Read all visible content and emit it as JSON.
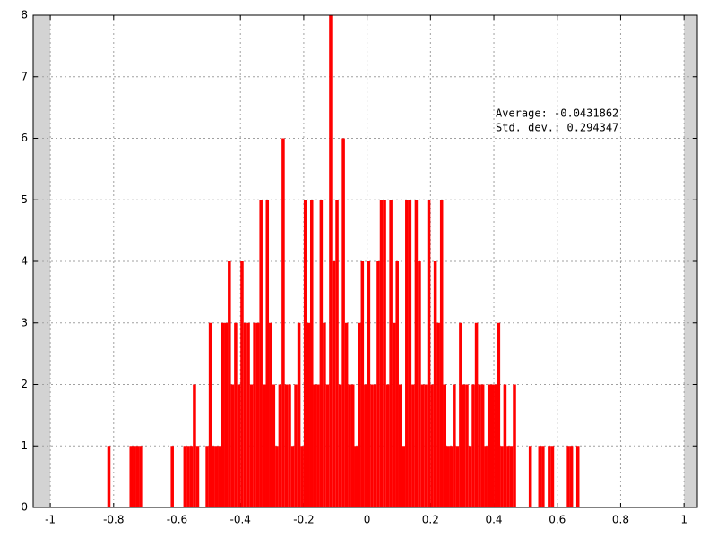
{
  "chart_data": {
    "type": "histogram",
    "annotations": [
      "Average: -0.0431862",
      "Std. dev.: 0.294347"
    ],
    "bins": [
      -0.82,
      -0.81,
      -0.8,
      -0.79,
      -0.78,
      -0.77,
      -0.76,
      -0.75,
      -0.74,
      -0.73,
      -0.72,
      -0.71,
      -0.7,
      -0.69,
      -0.68,
      -0.67,
      -0.66,
      -0.65,
      -0.64,
      -0.63,
      -0.62,
      -0.61,
      -0.6,
      -0.59,
      -0.58,
      -0.57,
      -0.56,
      -0.55,
      -0.54,
      -0.53,
      -0.52,
      -0.51,
      -0.5,
      -0.49,
      -0.48,
      -0.47,
      -0.46,
      -0.45,
      -0.44,
      -0.43,
      -0.42,
      -0.41,
      -0.4,
      -0.39,
      -0.38,
      -0.37,
      -0.36,
      -0.35,
      -0.34,
      -0.33,
      -0.32,
      -0.31,
      -0.3,
      -0.29,
      -0.28,
      -0.27,
      -0.26,
      -0.25,
      -0.24,
      -0.23,
      -0.22,
      -0.21,
      -0.2,
      -0.19,
      -0.18,
      -0.17,
      -0.16,
      -0.15,
      -0.14,
      -0.13,
      -0.12,
      -0.11,
      -0.1,
      -0.09,
      -0.08,
      -0.07,
      -0.06,
      -0.05,
      -0.04,
      -0.03,
      -0.02,
      -0.01,
      0,
      0.01,
      0.02,
      0.03,
      0.04,
      0.05,
      0.06,
      0.07,
      0.08,
      0.09,
      0.1,
      0.11,
      0.12,
      0.13,
      0.14,
      0.15,
      0.16,
      0.17,
      0.18,
      0.19,
      0.2,
      0.21,
      0.22,
      0.23,
      0.24,
      0.25,
      0.26,
      0.27,
      0.28,
      0.29,
      0.3,
      0.31,
      0.32,
      0.33,
      0.34,
      0.35,
      0.36,
      0.37,
      0.38,
      0.39,
      0.4,
      0.41,
      0.42,
      0.43,
      0.44,
      0.45,
      0.46,
      0.47,
      0.48,
      0.49,
      0.5,
      0.51,
      0.52,
      0.53,
      0.54,
      0.55,
      0.56,
      0.57,
      0.58,
      0.59,
      0.6,
      0.61,
      0.62,
      0.63,
      0.64,
      0.65,
      0.66,
      0.67
    ],
    "values": [
      1,
      0,
      0,
      0,
      0,
      0,
      0,
      1,
      1,
      1,
      1,
      0,
      0,
      0,
      0,
      0,
      0,
      0,
      0,
      0,
      1,
      0,
      0,
      0,
      1,
      1,
      1,
      2,
      1,
      0,
      0,
      1,
      3,
      1,
      1,
      1,
      3,
      3,
      4,
      2,
      3,
      2,
      4,
      3,
      3,
      2,
      3,
      3,
      5,
      2,
      5,
      3,
      2,
      1,
      2,
      6,
      2,
      2,
      1,
      2,
      3,
      1,
      5,
      3,
      5,
      2,
      2,
      5,
      3,
      2,
      8,
      4,
      5,
      2,
      6,
      3,
      2,
      2,
      1,
      3,
      4,
      2,
      4,
      2,
      2,
      4,
      5,
      5,
      2,
      5,
      3,
      4,
      2,
      1,
      5,
      5,
      2,
      5,
      4,
      2,
      2,
      5,
      2,
      4,
      3,
      5,
      2,
      1,
      1,
      2,
      1,
      3,
      2,
      2,
      1,
      2,
      3,
      2,
      2,
      1,
      2,
      2,
      2,
      3,
      1,
      2,
      1,
      1,
      2,
      0,
      0,
      0,
      0,
      1,
      0,
      0,
      1,
      1,
      0,
      1,
      1,
      0,
      0,
      0,
      0,
      1,
      1,
      0,
      1
    ],
    "color": "#ff0000",
    "xlim": [
      -1.054,
      1.042
    ],
    "xticks": [
      -1,
      -0.8,
      -0.6,
      -0.4,
      -0.2,
      0,
      0.2,
      0.4,
      0.6,
      0.8,
      1
    ],
    "ylim": [
      0,
      8
    ],
    "yticks": [
      0,
      1,
      2,
      3,
      4,
      5,
      6,
      7,
      8
    ],
    "grid": true
  }
}
